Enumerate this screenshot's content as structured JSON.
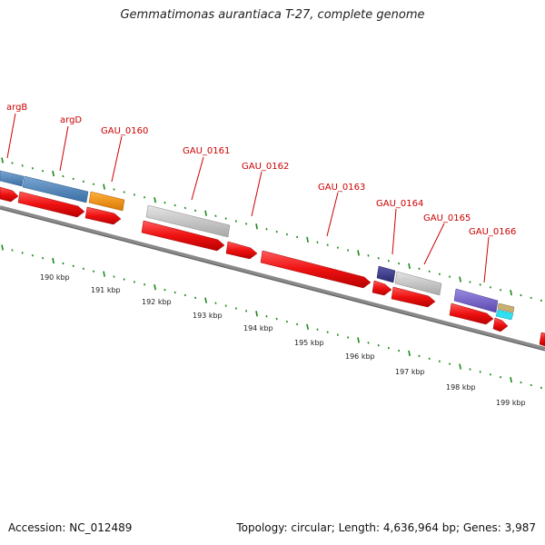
{
  "title": "Gemmatimonas aurantiaca T-27, complete genome",
  "footer": {
    "accession": "Accession: NC_012489",
    "summary": "Topology: circular; Length: 4,636,964 bp; Genes: 3,987"
  },
  "genes": [
    {
      "id": "argB",
      "label": "argB"
    },
    {
      "id": "argD",
      "label": "argD"
    },
    {
      "id": "GAU_0160",
      "label": "GAU_0160"
    },
    {
      "id": "GAU_0161",
      "label": "GAU_0161"
    },
    {
      "id": "GAU_0162",
      "label": "GAU_0162"
    },
    {
      "id": "GAU_0163",
      "label": "GAU_0163"
    },
    {
      "id": "GAU_0164",
      "label": "GAU_0164"
    },
    {
      "id": "GAU_0165",
      "label": "GAU_0165"
    },
    {
      "id": "GAU_0166",
      "label": "GAU_0166"
    }
  ],
  "scale_labels": [
    "190 kbp",
    "191 kbp",
    "192 kbp",
    "193 kbp",
    "194 kbp",
    "195 kbp",
    "196 kbp",
    "197 kbp",
    "198 kbp",
    "199 kbp"
  ],
  "colors": {
    "cds": "#ee1111",
    "feature_blue": "#4a80b8",
    "feature_orange": "#f09010",
    "feature_gray": "#c2c2c2",
    "feature_navy": "#3c3c88",
    "feature_purple": "#7a68cc",
    "feature_cyan": "#30e0f0",
    "feature_tan": "#c8b070",
    "label_red": "#cc0000",
    "tick_green": "#1a8a1a",
    "backbone": "#7a7a7a"
  }
}
